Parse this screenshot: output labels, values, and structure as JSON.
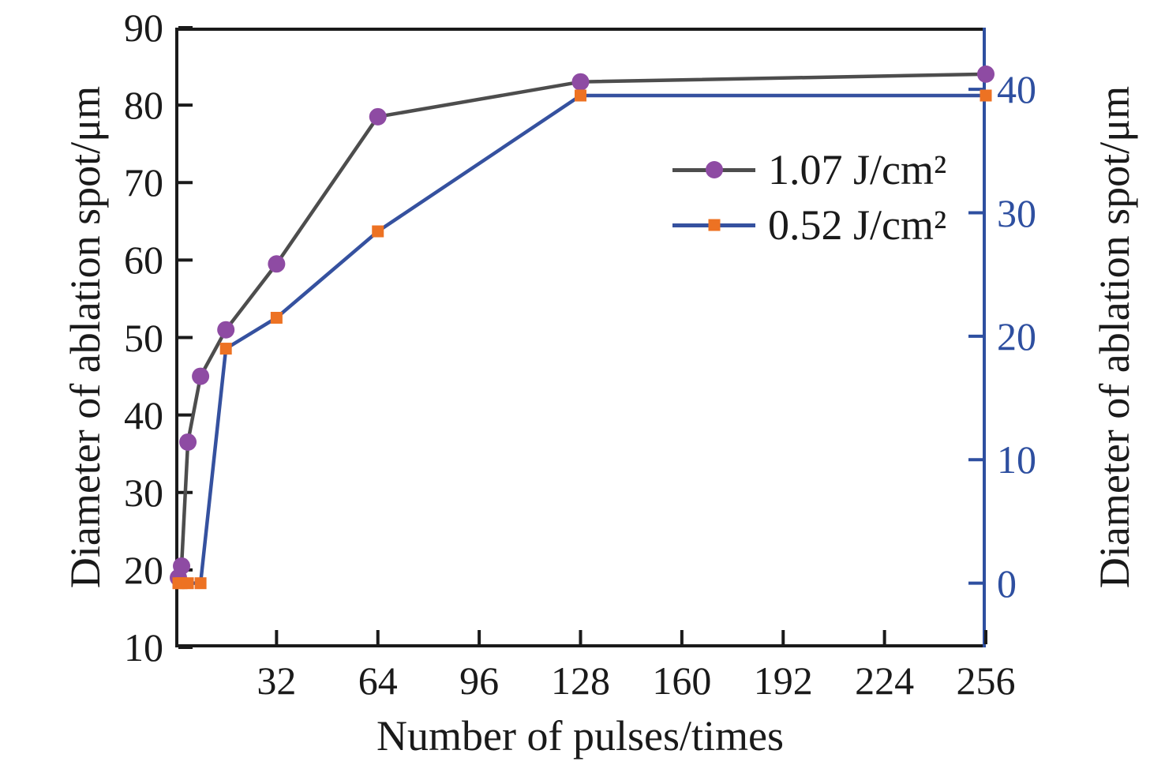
{
  "chart_data": {
    "type": "line",
    "title": "",
    "xlabel": "Number of pulses/times",
    "ylabel_left": "Diameter of ablation spot/μm",
    "ylabel_right": "Diameter of ablation spot/μm",
    "xlim": [
      0,
      256
    ],
    "x_ticks": [
      32,
      64,
      96,
      128,
      160,
      192,
      224,
      256
    ],
    "ylim_left": [
      10,
      90
    ],
    "y_ticks_left": [
      10,
      20,
      30,
      40,
      50,
      60,
      70,
      80,
      90
    ],
    "ylim_right": [
      -5.2,
      45
    ],
    "y_ticks_right": [
      0,
      10,
      20,
      30,
      40
    ],
    "grid": false,
    "legend_position": "upper-right-inside",
    "series": [
      {
        "name": "1.07 J/cm²",
        "axis": "left",
        "marker": "circle",
        "x": [
          1,
          2,
          4,
          8,
          16,
          32,
          64,
          128,
          256
        ],
        "y": [
          19,
          20.5,
          36.5,
          45,
          51,
          59.5,
          78.5,
          83,
          84
        ]
      },
      {
        "name": "0.52 J/cm²",
        "axis": "right",
        "marker": "square",
        "x": [
          1,
          2,
          4,
          8,
          16,
          32,
          64,
          128,
          256
        ],
        "y": [
          0,
          0,
          0,
          0,
          19,
          21.5,
          28.5,
          39.5,
          39.5
        ]
      }
    ],
    "colors": {
      "series1_marker": "#8e4ba3",
      "series1_line": "#4d4d4d",
      "series2_marker": "#ed7223",
      "series2_line": "#35519f",
      "right_axis": "#2e4fa0",
      "axis": "#1a1a1a",
      "background": "#ffffff"
    }
  }
}
